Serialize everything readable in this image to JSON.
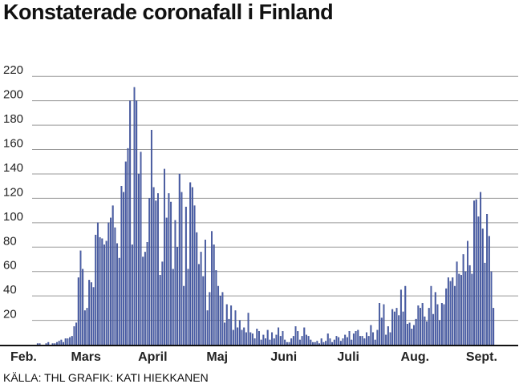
{
  "chart_data": {
    "type": "bar",
    "title": "Konstaterade coronafall i Finland",
    "source": "KÄLLA: THL GRAFIK: KATI HIEKKANEN",
    "xlabel": "",
    "ylabel": "",
    "ylim": [
      0,
      230
    ],
    "yticks": [
      20,
      40,
      60,
      80,
      100,
      120,
      140,
      160,
      180,
      200,
      220
    ],
    "grid": true,
    "legend": "none",
    "month_labels": [
      "Feb.",
      "Mars",
      "April",
      "Maj",
      "Juni",
      "Juli",
      "Aug.",
      "Sept."
    ],
    "start_date": "2020-02-01",
    "end_date": "2020-09-25",
    "values": [
      0,
      0,
      0,
      0,
      0,
      0,
      0,
      0,
      0,
      0,
      0,
      0,
      0,
      0,
      1,
      1,
      0,
      0,
      1,
      2,
      0,
      1,
      1,
      2,
      3,
      4,
      2,
      5,
      5,
      6,
      7,
      15,
      18,
      55,
      77,
      62,
      28,
      30,
      53,
      51,
      47,
      90,
      100,
      88,
      87,
      82,
      85,
      100,
      104,
      114,
      96,
      83,
      71,
      130,
      125,
      150,
      161,
      200,
      82,
      211,
      200,
      140,
      158,
      72,
      76,
      84,
      120,
      176,
      129,
      118,
      124,
      57,
      68,
      144,
      104,
      124,
      117,
      62,
      102,
      80,
      140,
      125,
      48,
      113,
      62,
      133,
      129,
      114,
      92,
      66,
      76,
      56,
      86,
      28,
      43,
      93,
      82,
      61,
      48,
      40,
      43,
      18,
      33,
      21,
      32,
      12,
      28,
      14,
      20,
      12,
      14,
      10,
      26,
      10,
      9,
      5,
      13,
      11,
      4,
      8,
      5,
      12,
      4,
      10,
      5,
      8,
      14,
      7,
      11,
      4,
      2,
      2,
      5,
      7,
      15,
      11,
      4,
      7,
      14,
      8,
      7,
      4,
      2,
      2,
      3,
      1,
      5,
      2,
      3,
      9,
      5,
      2,
      4,
      7,
      6,
      3,
      5,
      8,
      6,
      11,
      4,
      9,
      11,
      12,
      7,
      7,
      5,
      10,
      7,
      16,
      10,
      4,
      12,
      34,
      22,
      33,
      8,
      15,
      10,
      29,
      27,
      30,
      24,
      45,
      27,
      48,
      17,
      18,
      13,
      16,
      21,
      32,
      30,
      34,
      23,
      19,
      30,
      48,
      25,
      43,
      33,
      20,
      34,
      33,
      46,
      55,
      52,
      55,
      48,
      68,
      58,
      57,
      74,
      60,
      85,
      65,
      58,
      118,
      119,
      105,
      125,
      95,
      67,
      107,
      89,
      60,
      30
    ]
  }
}
